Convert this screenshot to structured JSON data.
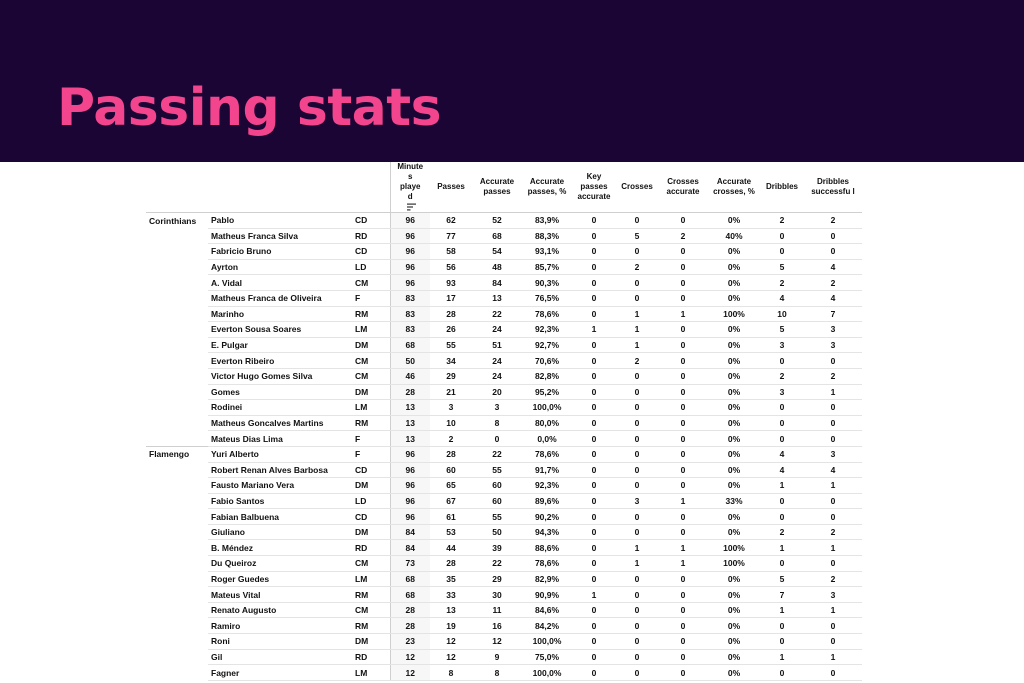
{
  "title": "Passing stats",
  "columns": [
    "Minute s playe d",
    "Passes",
    "Accurate passes",
    "Accurate passes, %",
    "Key passes accurate",
    "Crosses",
    "Crosses accurate",
    "Accurate crosses, %",
    "Dribbles",
    "Dribbles successfu l"
  ],
  "teams": [
    {
      "name": "Corinthians",
      "players": [
        {
          "name": "Pablo",
          "pos": "CD",
          "stats": [
            "96",
            "62",
            "52",
            "83,9%",
            "0",
            "0",
            "0",
            "0%",
            "2",
            "2"
          ]
        },
        {
          "name": "Matheus Franca Silva",
          "pos": "RD",
          "stats": [
            "96",
            "77",
            "68",
            "88,3%",
            "0",
            "5",
            "2",
            "40%",
            "0",
            "0"
          ]
        },
        {
          "name": "Fabricio Bruno",
          "pos": "CD",
          "stats": [
            "96",
            "58",
            "54",
            "93,1%",
            "0",
            "0",
            "0",
            "0%",
            "0",
            "0"
          ]
        },
        {
          "name": "Ayrton",
          "pos": "LD",
          "stats": [
            "96",
            "56",
            "48",
            "85,7%",
            "0",
            "2",
            "0",
            "0%",
            "5",
            "4"
          ]
        },
        {
          "name": "A. Vidal",
          "pos": "CM",
          "stats": [
            "96",
            "93",
            "84",
            "90,3%",
            "0",
            "0",
            "0",
            "0%",
            "2",
            "2"
          ]
        },
        {
          "name": "Matheus Franca de Oliveira",
          "pos": "F",
          "stats": [
            "83",
            "17",
            "13",
            "76,5%",
            "0",
            "0",
            "0",
            "0%",
            "4",
            "4"
          ]
        },
        {
          "name": "Marinho",
          "pos": "RM",
          "stats": [
            "83",
            "28",
            "22",
            "78,6%",
            "0",
            "1",
            "1",
            "100%",
            "10",
            "7"
          ]
        },
        {
          "name": "Everton Sousa Soares",
          "pos": "LM",
          "stats": [
            "83",
            "26",
            "24",
            "92,3%",
            "1",
            "1",
            "0",
            "0%",
            "5",
            "3"
          ]
        },
        {
          "name": "E. Pulgar",
          "pos": "DM",
          "stats": [
            "68",
            "55",
            "51",
            "92,7%",
            "0",
            "1",
            "0",
            "0%",
            "3",
            "3"
          ]
        },
        {
          "name": "Everton Ribeiro",
          "pos": "CM",
          "stats": [
            "50",
            "34",
            "24",
            "70,6%",
            "0",
            "2",
            "0",
            "0%",
            "0",
            "0"
          ]
        },
        {
          "name": "Victor Hugo Gomes Silva",
          "pos": "CM",
          "stats": [
            "46",
            "29",
            "24",
            "82,8%",
            "0",
            "0",
            "0",
            "0%",
            "2",
            "2"
          ]
        },
        {
          "name": "Gomes",
          "pos": "DM",
          "stats": [
            "28",
            "21",
            "20",
            "95,2%",
            "0",
            "0",
            "0",
            "0%",
            "3",
            "1"
          ]
        },
        {
          "name": "Rodinei",
          "pos": "LM",
          "stats": [
            "13",
            "3",
            "3",
            "100,0%",
            "0",
            "0",
            "0",
            "0%",
            "0",
            "0"
          ]
        },
        {
          "name": "Matheus Goncalves Martins",
          "pos": "RM",
          "stats": [
            "13",
            "10",
            "8",
            "80,0%",
            "0",
            "0",
            "0",
            "0%",
            "0",
            "0"
          ]
        },
        {
          "name": "Mateus Dias Lima",
          "pos": "F",
          "stats": [
            "13",
            "2",
            "0",
            "0,0%",
            "0",
            "0",
            "0",
            "0%",
            "0",
            "0"
          ]
        }
      ]
    },
    {
      "name": "Flamengo",
      "players": [
        {
          "name": "Yuri Alberto",
          "pos": "F",
          "stats": [
            "96",
            "28",
            "22",
            "78,6%",
            "0",
            "0",
            "0",
            "0%",
            "4",
            "3"
          ]
        },
        {
          "name": "Robert Renan Alves Barbosa",
          "pos": "CD",
          "stats": [
            "96",
            "60",
            "55",
            "91,7%",
            "0",
            "0",
            "0",
            "0%",
            "4",
            "4"
          ]
        },
        {
          "name": "Fausto Mariano Vera",
          "pos": "DM",
          "stats": [
            "96",
            "65",
            "60",
            "92,3%",
            "0",
            "0",
            "0",
            "0%",
            "1",
            "1"
          ]
        },
        {
          "name": "Fabio Santos",
          "pos": "LD",
          "stats": [
            "96",
            "67",
            "60",
            "89,6%",
            "0",
            "3",
            "1",
            "33%",
            "0",
            "0"
          ]
        },
        {
          "name": "Fabian Balbuena",
          "pos": "CD",
          "stats": [
            "96",
            "61",
            "55",
            "90,2%",
            "0",
            "0",
            "0",
            "0%",
            "0",
            "0"
          ]
        },
        {
          "name": "Giuliano",
          "pos": "DM",
          "stats": [
            "84",
            "53",
            "50",
            "94,3%",
            "0",
            "0",
            "0",
            "0%",
            "2",
            "2"
          ]
        },
        {
          "name": "B. Méndez",
          "pos": "RD",
          "stats": [
            "84",
            "44",
            "39",
            "88,6%",
            "0",
            "1",
            "1",
            "100%",
            "1",
            "1"
          ]
        },
        {
          "name": "Du Queiroz",
          "pos": "CM",
          "stats": [
            "73",
            "28",
            "22",
            "78,6%",
            "0",
            "1",
            "1",
            "100%",
            "0",
            "0"
          ]
        },
        {
          "name": "Roger Guedes",
          "pos": "LM",
          "stats": [
            "68",
            "35",
            "29",
            "82,9%",
            "0",
            "0",
            "0",
            "0%",
            "5",
            "2"
          ]
        },
        {
          "name": "Mateus Vital",
          "pos": "RM",
          "stats": [
            "68",
            "33",
            "30",
            "90,9%",
            "1",
            "0",
            "0",
            "0%",
            "7",
            "3"
          ]
        },
        {
          "name": "Renato Augusto",
          "pos": "CM",
          "stats": [
            "28",
            "13",
            "11",
            "84,6%",
            "0",
            "0",
            "0",
            "0%",
            "1",
            "1"
          ]
        },
        {
          "name": "Ramiro",
          "pos": "RM",
          "stats": [
            "28",
            "19",
            "16",
            "84,2%",
            "0",
            "0",
            "0",
            "0%",
            "0",
            "0"
          ]
        },
        {
          "name": "Roni",
          "pos": "DM",
          "stats": [
            "23",
            "12",
            "12",
            "100,0%",
            "0",
            "0",
            "0",
            "0%",
            "0",
            "0"
          ]
        },
        {
          "name": "Gil",
          "pos": "RD",
          "stats": [
            "12",
            "12",
            "9",
            "75,0%",
            "0",
            "0",
            "0",
            "0%",
            "1",
            "1"
          ]
        },
        {
          "name": "Fagner",
          "pos": "LM",
          "stats": [
            "12",
            "8",
            "8",
            "100,0%",
            "0",
            "0",
            "0",
            "0%",
            "0",
            "0"
          ]
        }
      ]
    }
  ],
  "icons": {
    "sort": "sort-descending-icon"
  }
}
